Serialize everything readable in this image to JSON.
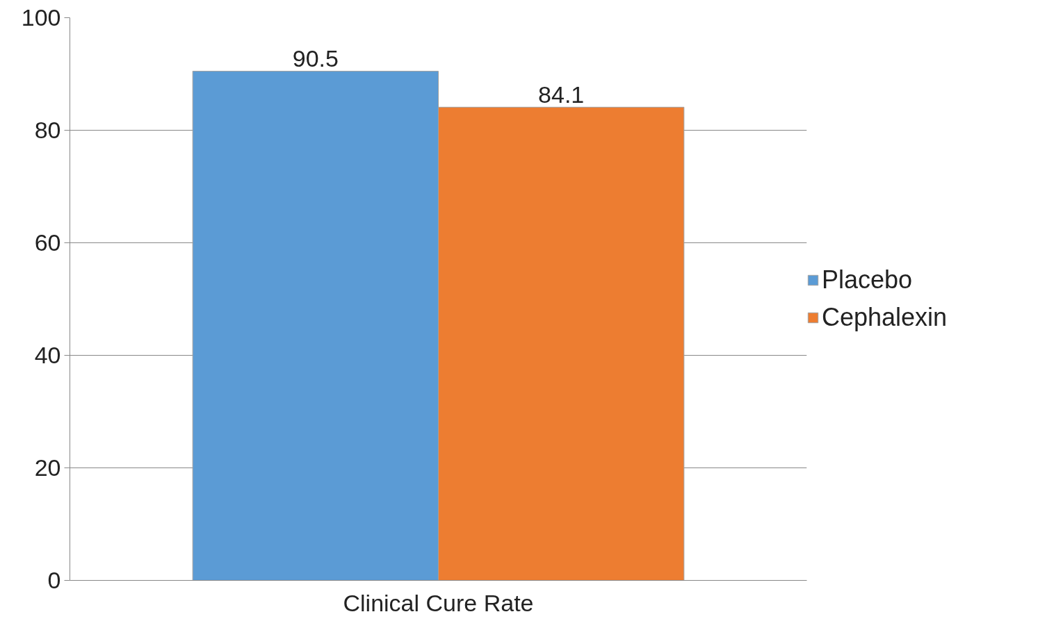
{
  "chart_data": {
    "type": "bar",
    "categories": [
      "Clinical Cure Rate"
    ],
    "series": [
      {
        "name": "Placebo",
        "color": "#5b9bd5",
        "values": [
          90.5
        ]
      },
      {
        "name": "Cephalexin",
        "color": "#ed7d31",
        "values": [
          84.1
        ]
      }
    ],
    "ylim": [
      0,
      100
    ],
    "yticks": [
      0,
      20,
      40,
      60,
      80,
      100
    ],
    "grid": "y",
    "legend": "right",
    "data_labels": true
  }
}
